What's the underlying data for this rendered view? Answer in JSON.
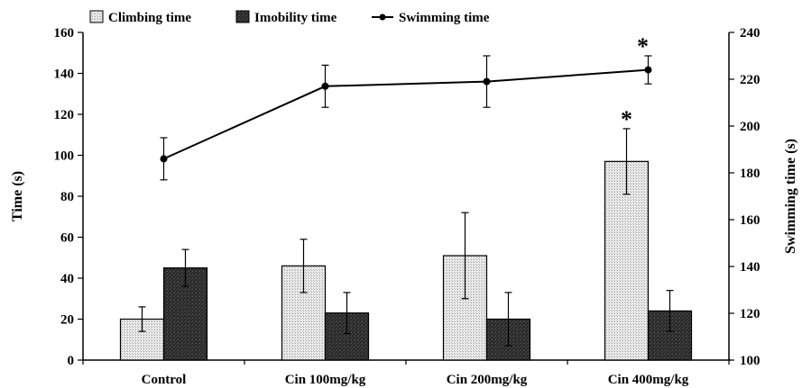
{
  "chart_data": {
    "type": "bar",
    "categories": [
      "Control",
      "Cin 100mg/kg",
      "Cin 200mg/kg",
      "Cin 400mg/kg"
    ],
    "series": [
      {
        "name": "Climbing time",
        "axis": "left",
        "values": [
          20,
          46,
          51,
          97
        ],
        "error": [
          6,
          13,
          21,
          16
        ],
        "significant": [
          false,
          false,
          false,
          true
        ]
      },
      {
        "name": "Imobility time",
        "axis": "left",
        "values": [
          45,
          23,
          20,
          24
        ],
        "error": [
          9,
          10,
          13,
          10
        ],
        "significant": [
          false,
          false,
          false,
          false
        ]
      },
      {
        "name": "Swimming time",
        "axis": "right",
        "type": "line",
        "values": [
          186,
          217,
          219,
          224
        ],
        "error": [
          9,
          9,
          11,
          6
        ],
        "significant": [
          false,
          false,
          false,
          true
        ]
      }
    ],
    "ylabel": "Time (s)",
    "y2label": "Swimming time (s)",
    "ylim": [
      0,
      160
    ],
    "y_ticks": [
      0,
      20,
      40,
      60,
      80,
      100,
      120,
      140,
      160
    ],
    "y2lim": [
      100,
      240
    ],
    "y2_ticks": [
      100,
      120,
      140,
      160,
      180,
      200,
      220,
      240
    ],
    "significance_marker": "*",
    "legend_position": "top-left",
    "grid": false
  }
}
